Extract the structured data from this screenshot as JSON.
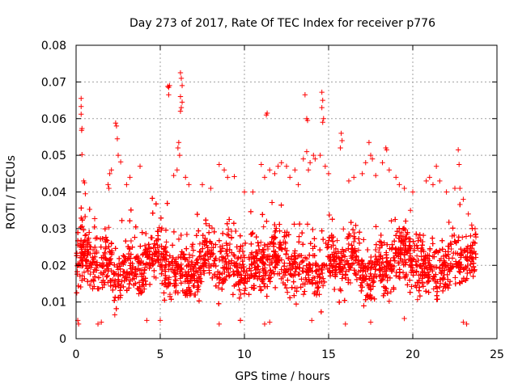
{
  "chart_data": {
    "type": "scatter",
    "title": "Day 273 of 2017, Rate Of TEC Index for receiver p776",
    "xlabel": "GPS time / hours",
    "ylabel": "ROTI / TECUs",
    "xlim": [
      0,
      25
    ],
    "ylim": [
      0,
      0.08
    ],
    "x_ticks": [
      "0",
      "5",
      "10",
      "15",
      "20",
      "25"
    ],
    "y_ticks": [
      "0",
      "0.01",
      "0.02",
      "0.03",
      "0.04",
      "0.05",
      "0.06",
      "0.07",
      "0.08"
    ],
    "grid": true,
    "legend": "none",
    "marker": "+",
    "series_color": "#ff0000",
    "x_range_of_data": [
      0,
      23.75
    ],
    "typical_band": [
      0.008,
      0.032
    ],
    "points": [
      [
        0.3,
        0.0655
      ],
      [
        0.3,
        0.0633
      ],
      [
        0.3,
        0.0612
      ],
      [
        0.35,
        0.0573
      ],
      [
        0.33,
        0.0568
      ],
      [
        0.35,
        0.0502
      ],
      [
        0.45,
        0.043
      ],
      [
        0.5,
        0.0425
      ],
      [
        0.55,
        0.0395
      ],
      [
        2.35,
        0.0588
      ],
      [
        2.4,
        0.058
      ],
      [
        2.45,
        0.0545
      ],
      [
        2.5,
        0.05
      ],
      [
        2.65,
        0.0482
      ],
      [
        2.1,
        0.046
      ],
      [
        2.0,
        0.045
      ],
      [
        1.9,
        0.042
      ],
      [
        1.95,
        0.041
      ],
      [
        3.8,
        0.047
      ],
      [
        3.2,
        0.044
      ],
      [
        3.0,
        0.042
      ],
      [
        5.45,
        0.0688
      ],
      [
        5.5,
        0.0685
      ],
      [
        5.55,
        0.069
      ],
      [
        5.5,
        0.0665
      ],
      [
        6.2,
        0.0725
      ],
      [
        6.25,
        0.071
      ],
      [
        6.3,
        0.069
      ],
      [
        6.2,
        0.066
      ],
      [
        6.3,
        0.0645
      ],
      [
        6.25,
        0.063
      ],
      [
        6.2,
        0.062
      ],
      [
        6.1,
        0.0535
      ],
      [
        6.05,
        0.052
      ],
      [
        6.15,
        0.05
      ],
      [
        6.0,
        0.046
      ],
      [
        5.8,
        0.0445
      ],
      [
        6.5,
        0.044
      ],
      [
        6.7,
        0.042
      ],
      [
        7.5,
        0.042
      ],
      [
        8.0,
        0.041
      ],
      [
        8.5,
        0.0475
      ],
      [
        8.8,
        0.046
      ],
      [
        9.0,
        0.044
      ],
      [
        9.4,
        0.0442
      ],
      [
        10.0,
        0.04
      ],
      [
        10.5,
        0.04
      ],
      [
        11.35,
        0.0615
      ],
      [
        11.3,
        0.061
      ],
      [
        11.0,
        0.0475
      ],
      [
        11.5,
        0.046
      ],
      [
        11.2,
        0.044
      ],
      [
        11.8,
        0.045
      ],
      [
        12.0,
        0.047
      ],
      [
        12.2,
        0.048
      ],
      [
        12.5,
        0.047
      ],
      [
        12.7,
        0.044
      ],
      [
        13.0,
        0.046
      ],
      [
        13.2,
        0.042
      ],
      [
        13.6,
        0.0665
      ],
      [
        13.7,
        0.06
      ],
      [
        13.75,
        0.0595
      ],
      [
        13.7,
        0.051
      ],
      [
        13.5,
        0.049
      ],
      [
        13.9,
        0.048
      ],
      [
        14.1,
        0.05
      ],
      [
        14.2,
        0.049
      ],
      [
        13.8,
        0.046
      ],
      [
        14.6,
        0.0672
      ],
      [
        14.65,
        0.065
      ],
      [
        14.6,
        0.063
      ],
      [
        14.7,
        0.06
      ],
      [
        14.65,
        0.059
      ],
      [
        14.5,
        0.05
      ],
      [
        14.8,
        0.047
      ],
      [
        15.0,
        0.045
      ],
      [
        15.75,
        0.056
      ],
      [
        15.8,
        0.054
      ],
      [
        15.7,
        0.052
      ],
      [
        16.5,
        0.044
      ],
      [
        16.2,
        0.043
      ],
      [
        17.4,
        0.0535
      ],
      [
        17.5,
        0.05
      ],
      [
        17.6,
        0.049
      ],
      [
        17.2,
        0.048
      ],
      [
        17.0,
        0.045
      ],
      [
        17.8,
        0.0445
      ],
      [
        18.4,
        0.052
      ],
      [
        18.45,
        0.0515
      ],
      [
        18.2,
        0.048
      ],
      [
        18.6,
        0.046
      ],
      [
        19.0,
        0.044
      ],
      [
        19.2,
        0.042
      ],
      [
        19.5,
        0.041
      ],
      [
        20.0,
        0.04
      ],
      [
        20.8,
        0.043
      ],
      [
        21.0,
        0.044
      ],
      [
        21.2,
        0.042
      ],
      [
        21.4,
        0.047
      ],
      [
        21.6,
        0.043
      ],
      [
        22.0,
        0.04
      ],
      [
        22.5,
        0.041
      ],
      [
        22.7,
        0.0515
      ],
      [
        22.75,
        0.0475
      ],
      [
        22.8,
        0.041
      ],
      [
        23.0,
        0.038
      ],
      [
        23.3,
        0.034
      ],
      [
        23.5,
        0.031
      ],
      [
        23.7,
        0.03
      ],
      [
        0.1,
        0.005
      ],
      [
        0.15,
        0.004
      ],
      [
        1.3,
        0.004
      ],
      [
        1.5,
        0.0045
      ],
      [
        2.3,
        0.0065
      ],
      [
        4.2,
        0.005
      ],
      [
        5.0,
        0.005
      ],
      [
        8.5,
        0.004
      ],
      [
        11.2,
        0.004
      ],
      [
        11.5,
        0.0045
      ],
      [
        14.0,
        0.005
      ],
      [
        16.0,
        0.004
      ],
      [
        17.5,
        0.0045
      ],
      [
        19.5,
        0.0055
      ],
      [
        23.0,
        0.0045
      ],
      [
        23.2,
        0.004
      ]
    ]
  }
}
